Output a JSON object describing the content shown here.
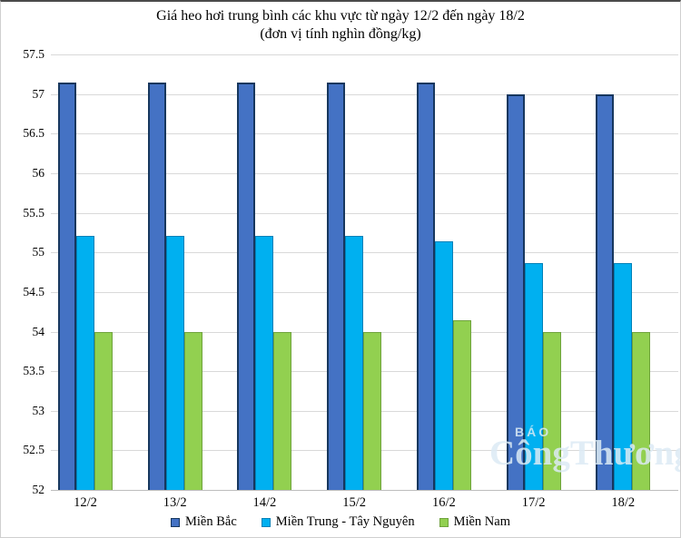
{
  "chart_data": {
    "type": "bar",
    "title": "Giá heo hơi trung bình các khu vực từ ngày 12/2 đến ngày 18/2",
    "subtitle": "(đơn vị tính nghìn đồng/kg)",
    "categories": [
      "12/2",
      "13/2",
      "14/2",
      "15/2",
      "16/2",
      "17/2",
      "18/2"
    ],
    "series": [
      {
        "name": "Miền Bắc",
        "color": "#4472C4",
        "border_color": "#17375E",
        "values": [
          57.15,
          57.15,
          57.15,
          57.15,
          57.15,
          57.0,
          57.0
        ]
      },
      {
        "name": "Miền Trung - Tây Nguyên",
        "color": "#00B0F0",
        "border_color": "#0081B8",
        "values": [
          55.21,
          55.21,
          55.21,
          55.21,
          55.14,
          54.86,
          54.86
        ]
      },
      {
        "name": "Miền Nam",
        "color": "#92D050",
        "border_color": "#6FA33C",
        "values": [
          54.0,
          54.0,
          54.0,
          54.0,
          54.14,
          54.0,
          54.0
        ]
      }
    ],
    "ylim": [
      52,
      57.5
    ],
    "ytick_step": 0.5,
    "yticks": [
      "57.5",
      "57",
      "56.5",
      "56",
      "55.5",
      "55",
      "54.5",
      "54",
      "53.5",
      "53",
      "52.5",
      "52"
    ],
    "grid": "horizontal",
    "gridline_color": "#D9D9D9",
    "legend_position": "bottom",
    "xlabel": "",
    "ylabel": ""
  },
  "watermark": {
    "line1": "BÁO",
    "line2": "CôngThương"
  }
}
